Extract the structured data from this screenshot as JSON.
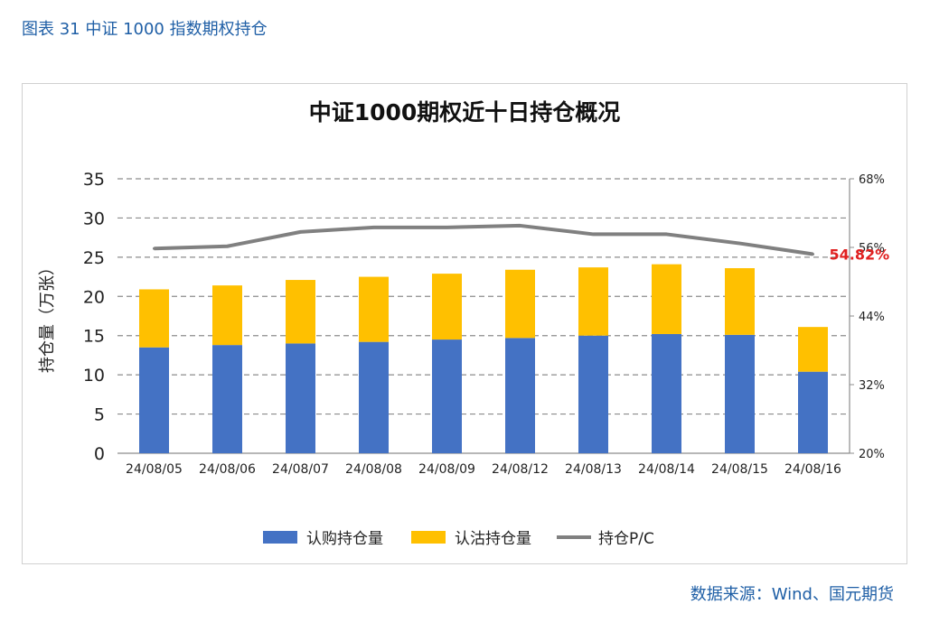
{
  "caption": "图表 31 中证 1000 指数期权持仓",
  "source": "数据来源：Wind、国元期货",
  "colors": {
    "call": "#4472c4",
    "put": "#ffc000",
    "pc_line": "#808080",
    "annotation": "#e02020"
  },
  "chart_data": {
    "type": "bar",
    "stacked": true,
    "title": "中证1000期权近十日持仓概况",
    "ylabel": "持仓量（万张）",
    "ylim": [
      0,
      35
    ],
    "yticks": [
      0,
      5,
      10,
      15,
      20,
      25,
      30,
      35
    ],
    "y2lim": [
      0.2,
      0.68
    ],
    "y2ticks": [
      "20%",
      "32%",
      "44%",
      "56%",
      "68%"
    ],
    "categories": [
      "24/08/05",
      "24/08/06",
      "24/08/07",
      "24/08/08",
      "24/08/09",
      "24/08/12",
      "24/08/13",
      "24/08/14",
      "24/08/15",
      "24/08/16"
    ],
    "series": [
      {
        "name": "认购持仓量",
        "type": "bar",
        "axis": "left",
        "values": [
          13.5,
          13.8,
          14.0,
          14.2,
          14.5,
          14.7,
          15.0,
          15.2,
          15.1,
          10.4
        ]
      },
      {
        "name": "认沽持仓量",
        "type": "bar",
        "axis": "left",
        "values": [
          7.4,
          7.6,
          8.1,
          8.3,
          8.4,
          8.7,
          8.7,
          8.9,
          8.5,
          5.7
        ]
      },
      {
        "name": "持仓P/C",
        "type": "line",
        "axis": "right",
        "values": [
          0.558,
          0.562,
          0.587,
          0.595,
          0.595,
          0.598,
          0.583,
          0.583,
          0.567,
          0.5482
        ]
      }
    ],
    "last_label": "54.82%",
    "grid": true,
    "legend_position": "bottom"
  }
}
